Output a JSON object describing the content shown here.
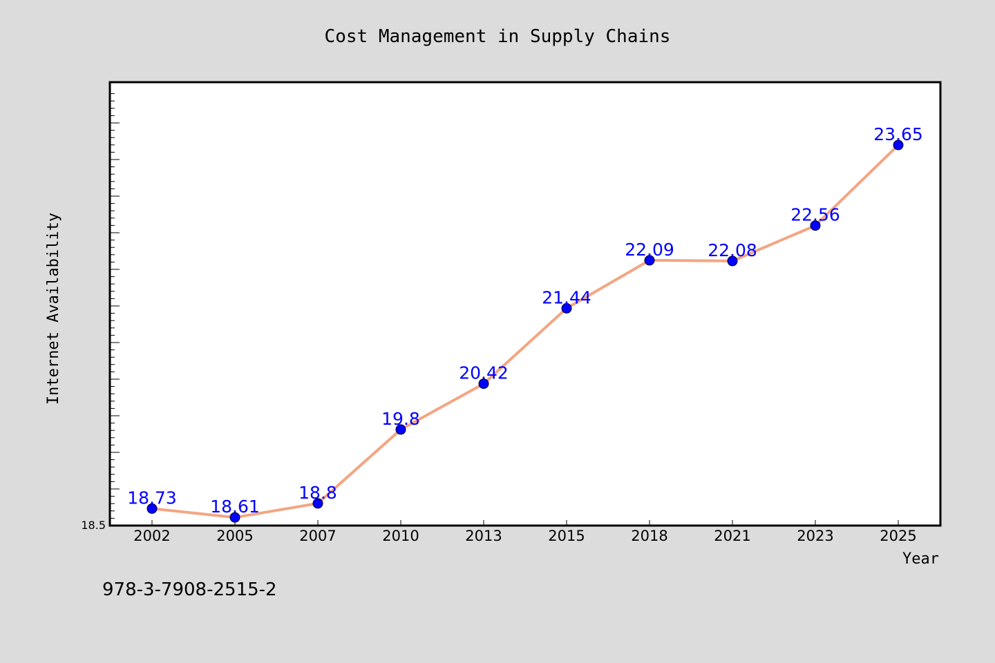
{
  "chart_data": {
    "type": "line",
    "title": "Cost Management in Supply Chains",
    "xlabel": "Year",
    "ylabel": "Internet Availability",
    "categories": [
      "2002",
      "2005",
      "2007",
      "2010",
      "2013",
      "2015",
      "2018",
      "2021",
      "2023",
      "2025"
    ],
    "series": [
      {
        "values": [
          18.73,
          18.61,
          18.8,
          19.8,
          20.42,
          21.44,
          22.09,
          22.08,
          22.56,
          23.65
        ],
        "labels": [
          "18.73",
          "18.61",
          "18.8",
          "19.8",
          "20.42",
          "21.44",
          "22.09",
          "22.08",
          "22.56",
          "23.65"
        ]
      }
    ],
    "ylim": [
      18.5,
      24.5
    ],
    "ytick_labels": [
      "18.5"
    ],
    "grid": false,
    "colors": {
      "line": "#f4a582",
      "marker": "#0000ff",
      "data_label": "#0000ff",
      "plot_background": "#ffffff",
      "figure_background": "#dcdcdc"
    }
  },
  "footer": {
    "identifier": "978-3-7908-2515-2"
  }
}
